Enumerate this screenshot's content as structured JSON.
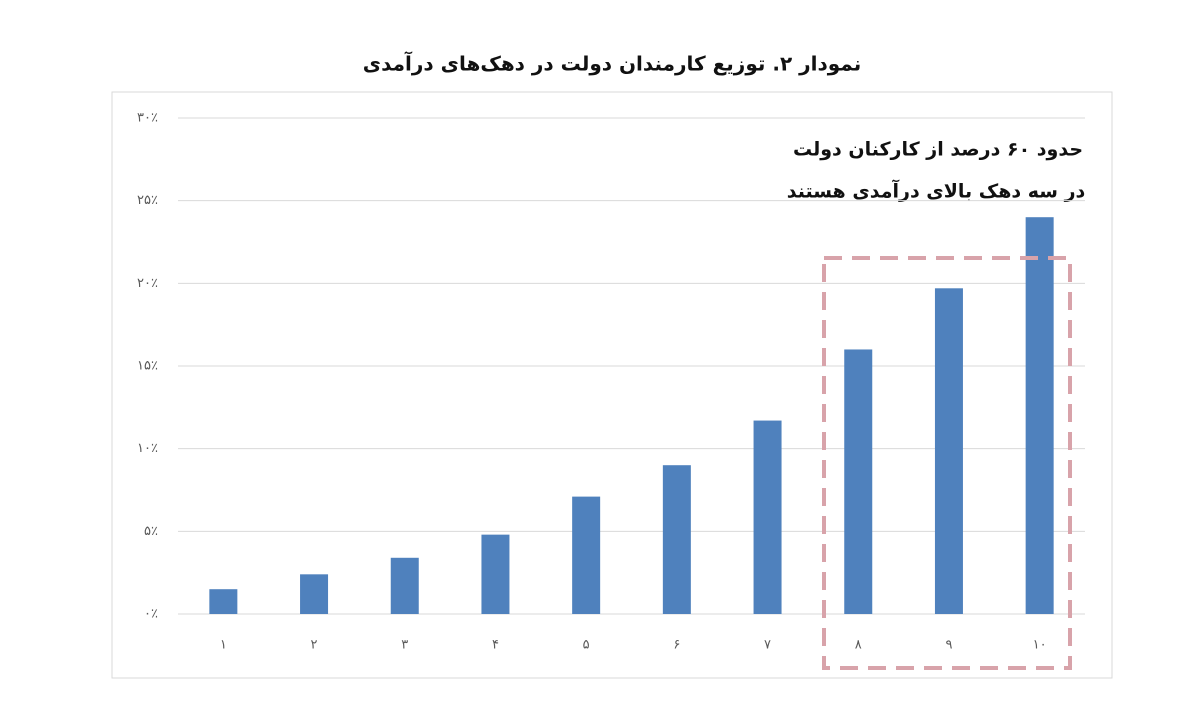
{
  "chart_data": {
    "type": "bar",
    "title": "نمودار ۲. توزیع کارمندان دولت در دهک‌های درآمدی",
    "annotation": [
      "حدود ۶۰ درصد از کارکنان دولت",
      "در سه دهک بالای درآمدی هستند"
    ],
    "categories": [
      "۱",
      "۲",
      "۳",
      "۴",
      "۵",
      "۶",
      "۷",
      "۸",
      "۹",
      "۱۰"
    ],
    "values": [
      1.5,
      2.4,
      3.4,
      4.8,
      7.1,
      9.0,
      11.7,
      16.0,
      19.7,
      24.0
    ],
    "color": "#4f81bd",
    "ylim": [
      0,
      30
    ],
    "yticks": [
      {
        "value": 0,
        "label": "۰٪"
      },
      {
        "value": 5,
        "label": "۵٪"
      },
      {
        "value": 10,
        "label": "۱۰٪"
      },
      {
        "value": 15,
        "label": "۱۵٪"
      },
      {
        "value": 20,
        "label": "۲۰٪"
      },
      {
        "value": 25,
        "label": "۲۵٪"
      },
      {
        "value": 30,
        "label": "۳۰٪"
      }
    ],
    "grid": true
  }
}
